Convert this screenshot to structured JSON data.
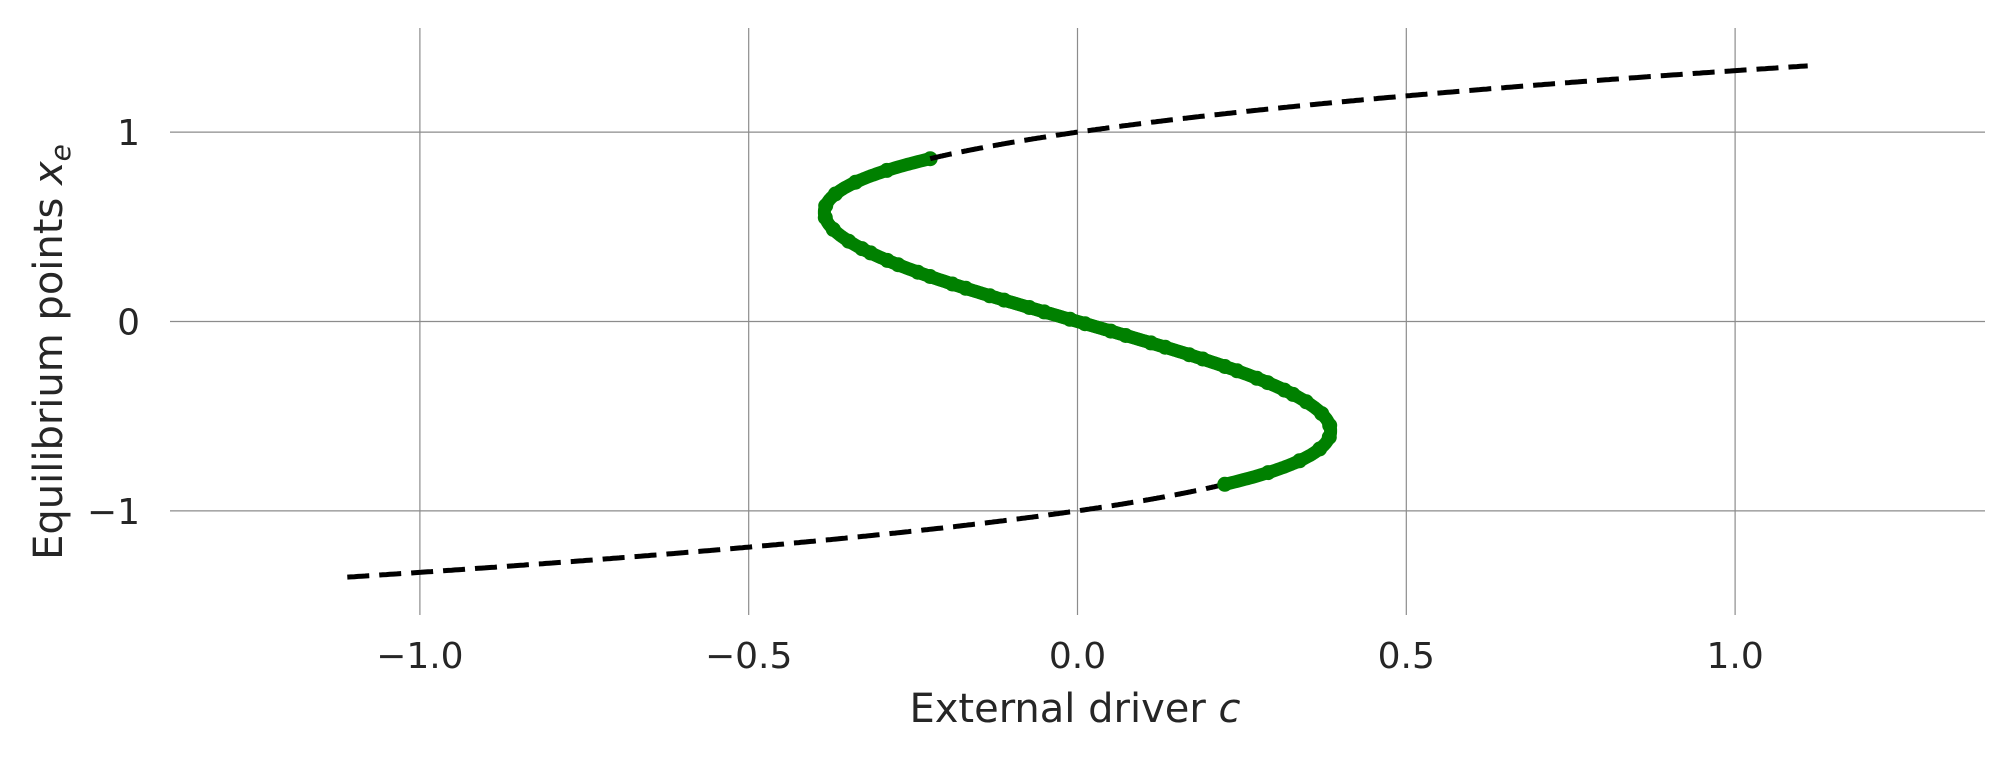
{
  "chart_data": {
    "type": "line",
    "title": "",
    "xlabel": "External driver",
    "xlabel_var": "c",
    "ylabel": "Equilibrium points",
    "ylabel_var": "x",
    "ylabel_sub": "e",
    "xlim": [
      -1.38,
      1.38
    ],
    "ylim": [
      -1.55,
      1.55
    ],
    "xticks": [
      -1.0,
      -0.5,
      0.0,
      0.5,
      1.0
    ],
    "xtick_labels": [
      "−1.0",
      "−0.5",
      "0.0",
      "0.5",
      "1.0"
    ],
    "yticks": [
      -1,
      0,
      1
    ],
    "ytick_labels": [
      "−1",
      "0",
      "1"
    ],
    "grid": true,
    "legend": "none",
    "curve": "c = x^3 - x",
    "x_range_plotted": [
      -1.35,
      1.35
    ],
    "series": [
      {
        "style": "dashed",
        "color": "#000000",
        "x_from": -1.35,
        "x_to": -0.86
      },
      {
        "style": "dots",
        "color": "#008000",
        "x_from": -0.86,
        "x_to": 0.3849,
        "branch": "lower"
      },
      {
        "style": "dashed",
        "color": "#000000",
        "x_from": 0.3849,
        "x_to": -0.3849,
        "branch": "middle"
      },
      {
        "style": "dots",
        "color": "#008000",
        "x_from": -0.3849,
        "x_to": 0.86,
        "branch": "upper"
      },
      {
        "style": "dashed",
        "color": "#000000",
        "x_from": 0.86,
        "x_to": 1.35
      }
    ]
  }
}
